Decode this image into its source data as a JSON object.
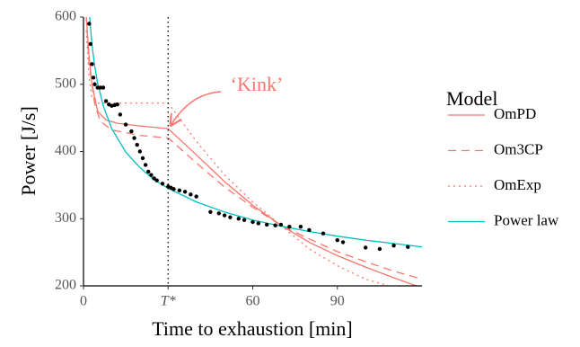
{
  "chart_data": {
    "type": "line",
    "x_label": "Time to exhaustion [min]",
    "y_label": "Power [J/s]",
    "legend_title": "Model",
    "legend_position": "right",
    "xlim": [
      0,
      120
    ],
    "ylim": [
      200,
      600
    ],
    "xticks": [
      0,
      {
        "value": 30,
        "label": "T*"
      },
      60,
      90
    ],
    "yticks": [
      200,
      300,
      400,
      500,
      600
    ],
    "vline": 30,
    "annotation": {
      "text": "‘Kink’",
      "x": 30,
      "y": 435,
      "color": "#F8766D"
    },
    "series": [
      {
        "name": "OmPD",
        "color": "#F8766D",
        "dash": "solid",
        "x": [
          1,
          2,
          3,
          5,
          8,
          12,
          20,
          30,
          40,
          50,
          60,
          70,
          80,
          90,
          100,
          110,
          118
        ],
        "values": [
          600,
          540,
          500,
          460,
          447,
          442,
          438,
          434,
          395,
          355,
          320,
          290,
          265,
          245,
          228,
          212,
          200
        ]
      },
      {
        "name": "Om3CP",
        "color": "#F8766D",
        "dash": "dashed",
        "x": [
          1,
          2,
          4,
          6,
          10,
          20,
          30,
          40,
          50,
          60,
          70,
          80,
          90,
          100,
          110,
          120
        ],
        "values": [
          600,
          530,
          470,
          445,
          432,
          424,
          420,
          383,
          347,
          317,
          290,
          270,
          251,
          236,
          222,
          210
        ]
      },
      {
        "name": "OmExp",
        "color": "#F8766D",
        "dash": "dotted",
        "x": [
          1,
          2,
          3,
          5,
          10,
          20,
          30,
          40,
          50,
          60,
          70,
          80,
          90,
          100,
          108
        ],
        "values": [
          580,
          510,
          480,
          472,
          472,
          472,
          472,
          415,
          365,
          325,
          290,
          255,
          230,
          210,
          200
        ]
      },
      {
        "name": "Power law",
        "color": "#00BFC4",
        "dash": "solid",
        "x": [
          2,
          3,
          4,
          5,
          7,
          10,
          15,
          20,
          25,
          30,
          40,
          50,
          60,
          70,
          80,
          90,
          100,
          110,
          120
        ],
        "values": [
          609,
          559,
          526,
          502,
          468,
          434,
          399,
          376,
          358,
          345,
          325,
          310,
          298,
          289,
          281,
          274,
          268,
          263,
          258
        ]
      }
    ],
    "points": {
      "color": "#000000",
      "x": [
        2,
        2.5,
        3,
        3.5,
        4,
        5,
        6,
        7,
        8,
        9,
        10,
        11,
        12,
        13,
        15,
        17,
        18,
        19,
        20,
        21,
        22,
        23,
        24,
        25,
        26,
        28,
        30,
        31,
        32,
        34,
        36,
        38,
        40,
        45,
        48,
        50,
        52,
        55,
        57,
        60,
        62,
        65,
        68,
        70,
        73,
        77,
        80,
        85,
        90,
        92,
        100,
        105,
        110,
        115
      ],
      "y": [
        590,
        560,
        530,
        510,
        500,
        495,
        495,
        495,
        475,
        470,
        468,
        469,
        470,
        455,
        440,
        430,
        420,
        410,
        400,
        390,
        380,
        370,
        365,
        360,
        357,
        352,
        348,
        346,
        344,
        342,
        340,
        336,
        333,
        310,
        308,
        305,
        302,
        300,
        298,
        295,
        293,
        291,
        290,
        291,
        288,
        288,
        283,
        278,
        268,
        265,
        257,
        255,
        260,
        258
      ]
    }
  }
}
